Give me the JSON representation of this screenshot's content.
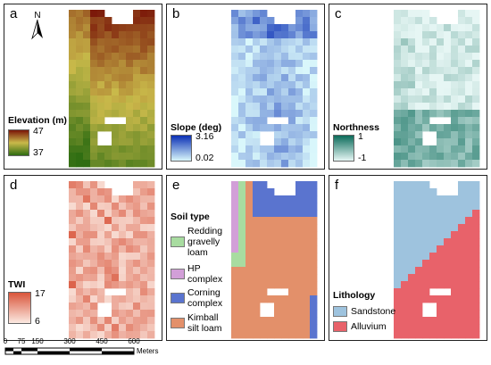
{
  "panels": {
    "a": {
      "label": "a",
      "legend_title": "Elevation (m)",
      "max": "47",
      "min": "37",
      "north": "N",
      "colors": [
        "#7a1508",
        "#c9b94a",
        "#2f6d12"
      ]
    },
    "b": {
      "label": "b",
      "legend_title": "Slope (deg)",
      "max": "3.16",
      "min": "0.02",
      "colors": [
        "#0a2fb5",
        "#d9f7fb"
      ]
    },
    "c": {
      "label": "c",
      "legend_title": "Northness",
      "max": "1",
      "min": "-1",
      "colors": [
        "#0b6b5a",
        "#e6f6f4"
      ]
    },
    "d": {
      "label": "d",
      "legend_title": "TWI",
      "max": "17",
      "min": "6",
      "colors": [
        "#d9553b",
        "#fbe9e1"
      ]
    },
    "e": {
      "label": "e",
      "legend_title": "Soil type",
      "classes": [
        {
          "name": "Redding gravelly loam",
          "lines": [
            "Redding",
            "gravelly",
            "loam"
          ],
          "color": "#a8dca0"
        },
        {
          "name": "HP complex",
          "lines": [
            "HP",
            "complex"
          ],
          "color": "#d29fd8"
        },
        {
          "name": "Corning complex",
          "lines": [
            "Corning",
            "complex"
          ],
          "color": "#5a74cf"
        },
        {
          "name": "Kimball silt loam",
          "lines": [
            "Kimball",
            "silt loam"
          ],
          "color": "#e3906a"
        }
      ]
    },
    "f": {
      "label": "f",
      "legend_title": "Lithology",
      "classes": [
        {
          "name": "Sandstone",
          "color": "#9ec3de"
        },
        {
          "name": "Alluvium",
          "color": "#e8626a"
        }
      ]
    }
  },
  "scale_bar": {
    "ticks": [
      "0",
      "75",
      "150",
      "300",
      "450",
      "600"
    ],
    "unit": "Meters"
  }
}
